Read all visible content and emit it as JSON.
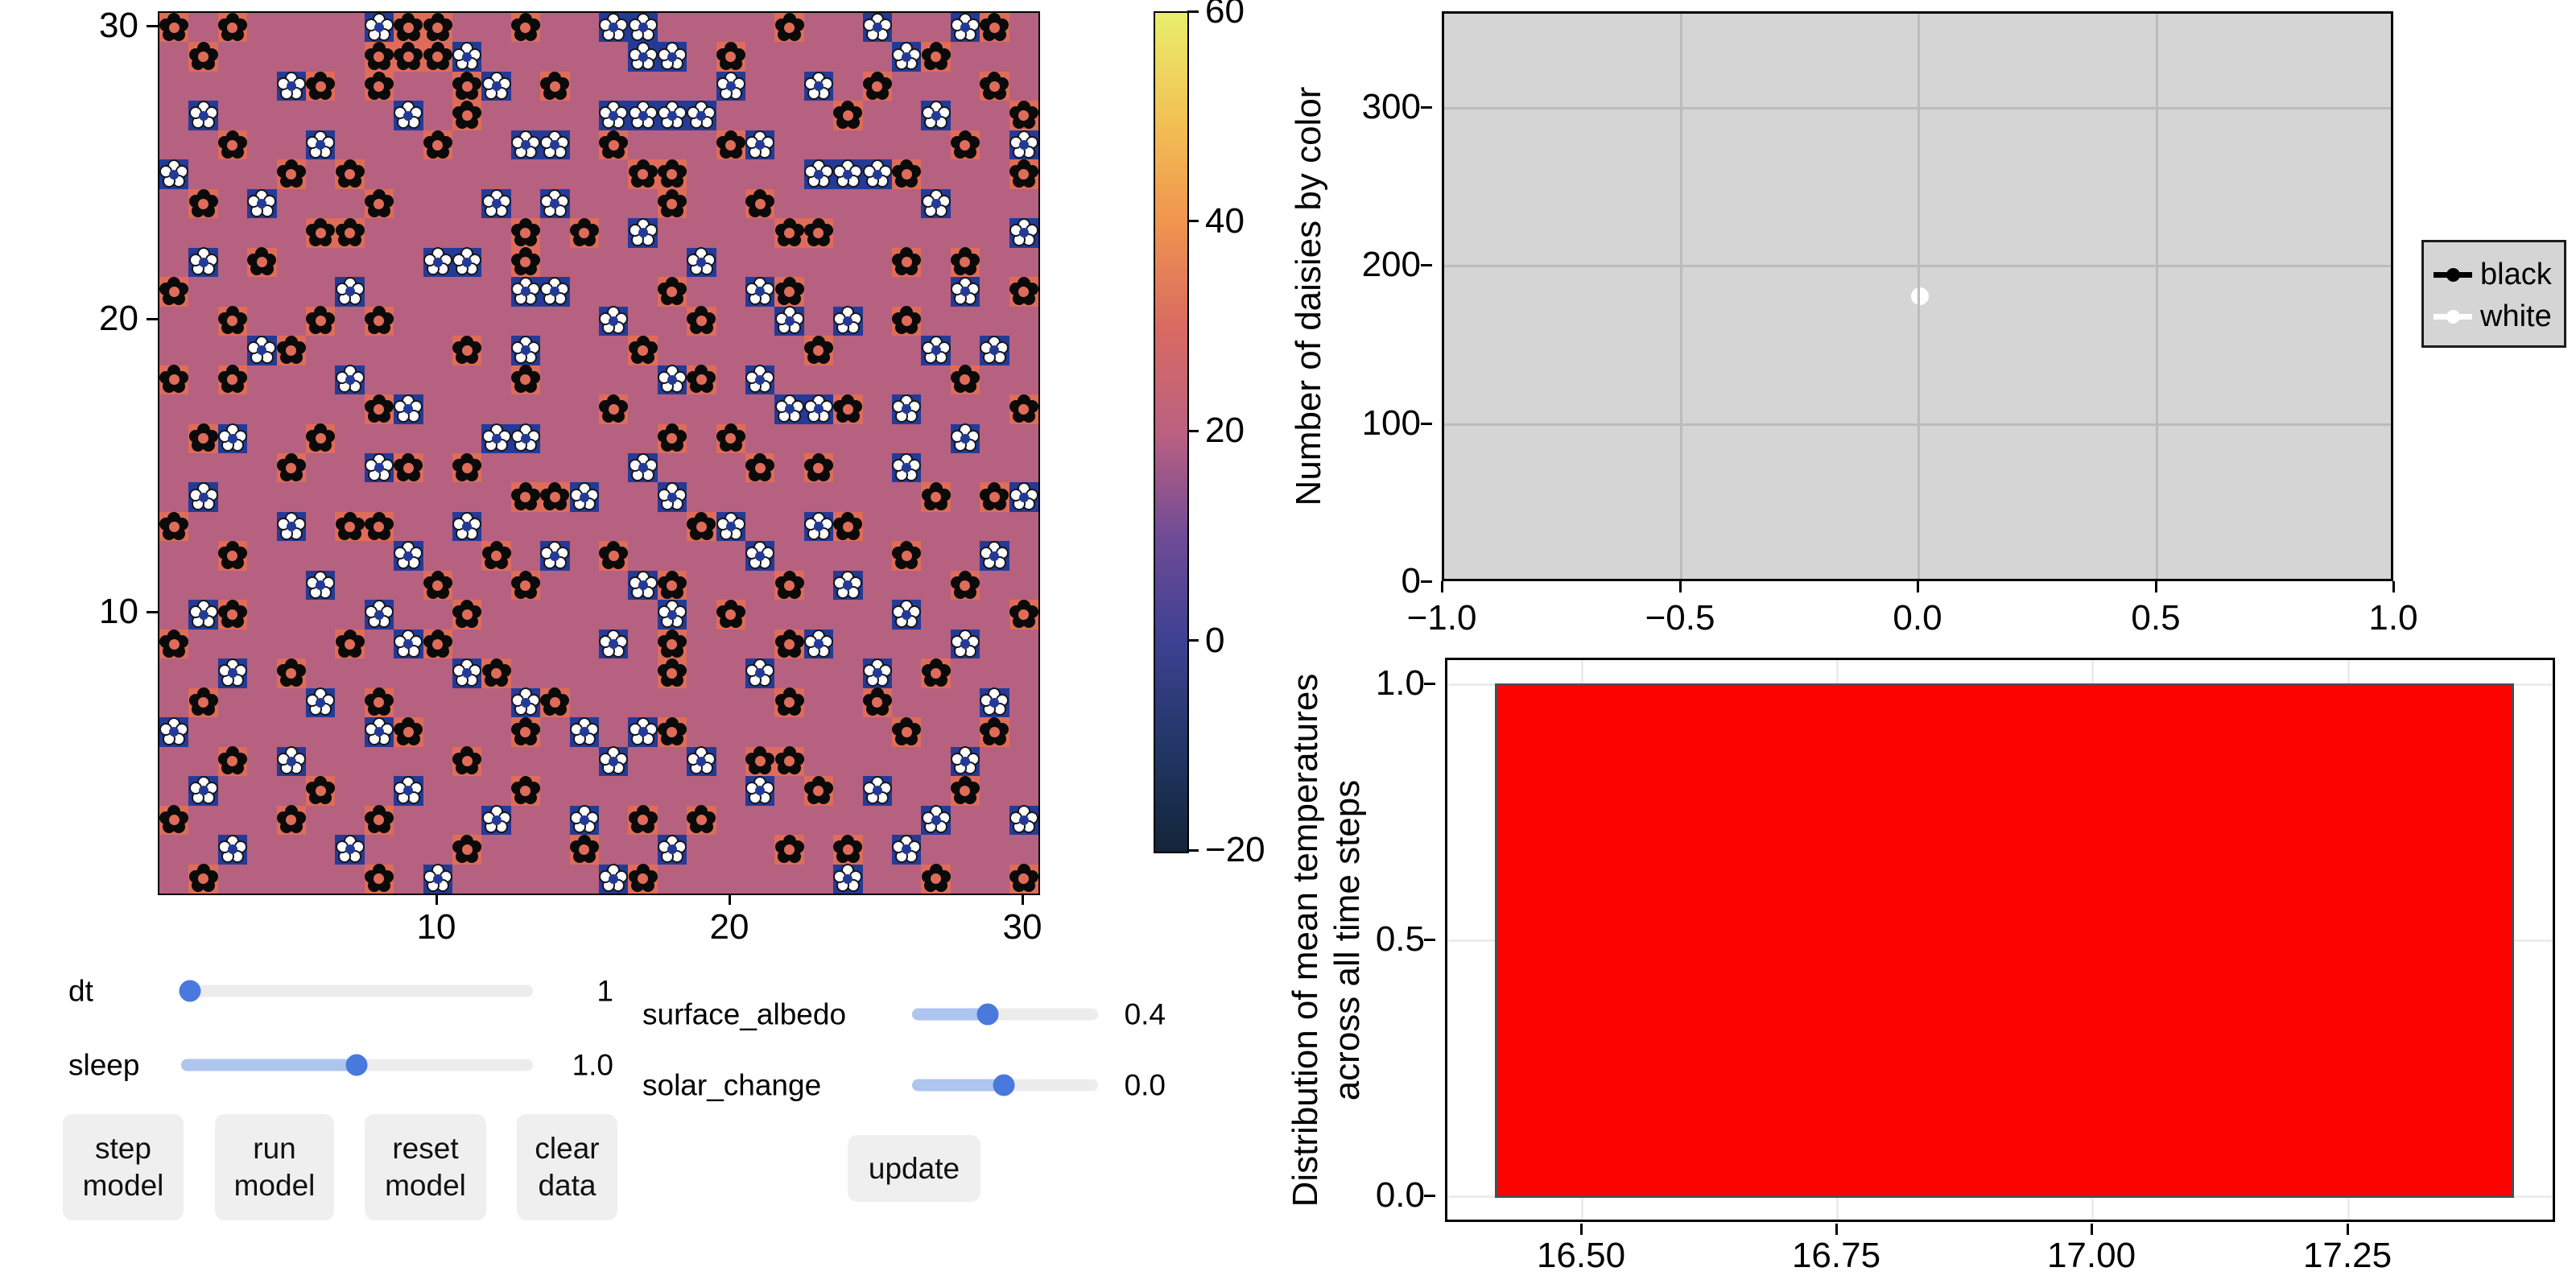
{
  "window": {
    "background": "#ffffff"
  },
  "heatmap": {
    "x_tick_labels": [
      "10",
      "20",
      "30"
    ],
    "y_tick_labels": [
      "30",
      "20",
      "10"
    ],
    "cell_colors": {
      "empty": "#b5617f",
      "black_daisy_cell": "#df6c59",
      "white_daisy_cell": "#243a97",
      "black_daisy": "#0a0a0a",
      "white_daisy": "#ffffff"
    },
    "grid_rows": [
      [
        "b.b..",
        "..wbb",
        "..b..",
        "ww...",
        ".b..w",
        "..wb."
      ],
      [
        ".b...",
        "..bbb",
        "w....",
        ".ww.b",
        ".....",
        "wb..."
      ],
      [
        "....w",
        "b.b..",
        "bw.b.",
        "....w",
        "..w.b",
        "...b."
      ],
      [
        ".w...",
        "...w.",
        "b....",
        "wwww.",
        "...b.",
        ".w..b"
      ],
      [
        "..b..",
        "w...b",
        "..ww.",
        "b...b",
        "w....",
        "..b.w"
      ],
      [
        "w...b",
        ".b...",
        ".....",
        ".bb..",
        "..www",
        "b...b"
      ],
      [
        ".b.w.",
        "..b..",
        ".w.w.",
        "..b..",
        "b....",
        ".w..."
      ],
      [
        ".....",
        "bb...",
        "..b.b",
        ".w...",
        ".bb..",
        "....w"
      ],
      [
        ".w.b.",
        "....w",
        "w.b..",
        "...w.",
        ".....",
        "b.b.."
      ],
      [
        "b....",
        ".w...",
        "..ww.",
        "..b..",
        "wb...",
        "..w.b"
      ],
      [
        "..b..",
        "b.b..",
        ".....",
        "w..b.",
        ".w.w.",
        "b...."
      ],
      [
        "...wb",
        ".....",
        "b.w..",
        ".b...",
        "..b..",
        ".w.w."
      ],
      [
        "b.b..",
        ".w...",
        "..b..",
        "..wb.",
        "w....",
        "..b.."
      ],
      [
        ".....",
        "..bw.",
        ".....",
        "b....",
        ".wwb.",
        "w...b"
      ],
      [
        ".bw..",
        "b....",
        ".ww..",
        "..b.b",
        ".....",
        "..w.."
      ],
      [
        "....b",
        "..wb.",
        "b....",
        ".w...",
        "b.b..",
        "w...."
      ],
      [
        ".w...",
        ".....",
        "..bbw",
        "..w..",
        ".....",
        ".b.bw"
      ],
      [
        "b...w",
        ".bb..",
        "w....",
        "...bw",
        "..wb.",
        "....."
      ],
      [
        "..b..",
        "...w.",
        ".b.w.",
        "b....",
        "w....",
        "b..w."
      ],
      [
        ".....",
        "w...b",
        "..b..",
        ".wb..",
        ".b.w.",
        "..b.."
      ],
      [
        ".wb..",
        "..w..",
        "b....",
        "..w.b",
        ".....",
        "w...b"
      ],
      [
        "b....",
        ".b.wb",
        ".....",
        "w.b..",
        ".bw..",
        "..w.."
      ],
      [
        "..w.b",
        ".....",
        "wb...",
        "..b..",
        "w...w",
        ".b..."
      ],
      [
        ".b...",
        "w.b..",
        "..wb.",
        ".....",
        ".b..b",
        "...w."
      ],
      [
        "w....",
        "..wb.",
        "..b.w",
        ".wb..",
        ".....",
        "b..b."
      ],
      [
        "..b.w",
        ".....",
        "b....",
        "w..w.",
        "bb...",
        "..w.."
      ],
      [
        ".w...",
        "b..w.",
        "..b..",
        ".....",
        "w.b.w",
        "..b.."
      ],
      [
        "b...b",
        "..b..",
        ".w..w",
        ".b.b.",
        ".....",
        ".w..w"
      ],
      [
        "..w..",
        ".w...",
        "b...b",
        "..w..",
        ".b.b.",
        "w...."
      ],
      [
        ".b...",
        "..b.w",
        ".....",
        "wb...",
        "...w.",
        ".b..b"
      ]
    ]
  },
  "colorbar": {
    "tick_labels": [
      "60",
      "40",
      "20",
      "0",
      "−20"
    ],
    "gradient_stops_bottom_to_top": [
      "#132539",
      "#223767",
      "#3d4191",
      "#6f4b96",
      "#bb6180",
      "#d86a62",
      "#f0944e",
      "#f2c254",
      "#e9ee6c"
    ]
  },
  "daisy_chart": {
    "ylabel": "Number of daisies by color",
    "y_tick_labels": [
      "300",
      "200",
      "100",
      "0"
    ],
    "x_tick_labels": [
      "−1.0",
      "−0.5",
      "0.0",
      "0.5",
      "1.0"
    ],
    "legend": [
      {
        "label": "black",
        "color": "#000000"
      },
      {
        "label": "white",
        "color": "#ffffff"
      }
    ]
  },
  "temp_hist": {
    "ylabel_line1": "Distribution of mean temperatures",
    "ylabel_line2": "across all time steps",
    "y_tick_labels": [
      "1.0",
      "0.5",
      "0.0"
    ],
    "x_tick_labels": [
      "16.50",
      "16.75",
      "17.00",
      "17.25"
    ],
    "bar_color": "#fb0300"
  },
  "controls": {
    "sliders": [
      {
        "label": "dt",
        "value": "1"
      },
      {
        "label": "sleep",
        "value": "1.0"
      },
      {
        "label": "surface_albedo",
        "value": "0.4"
      },
      {
        "label": "solar_change",
        "value": "0.0"
      }
    ],
    "buttons": [
      {
        "line1": "step",
        "line2": "model"
      },
      {
        "line1": "run",
        "line2": "model"
      },
      {
        "line1": "reset",
        "line2": "model"
      },
      {
        "line1": "clear",
        "line2": "data"
      }
    ],
    "update_button": "update",
    "accent_color": "#4a79de"
  },
  "chart_data": [
    {
      "type": "heatmap",
      "title": "Daisyworld surface (30×30): temperature colormap with black and white daisies",
      "x_range": [
        1,
        30
      ],
      "y_range": [
        1,
        30
      ],
      "x_ticks": [
        10,
        20,
        30
      ],
      "y_ticks": [
        10,
        20,
        30
      ],
      "colorbar": {
        "ticks": [
          60,
          40,
          20,
          0,
          -20
        ],
        "colormap": "thermal"
      },
      "cell_values": {
        "empty_background_temp": "≈17 (mauve)",
        "black_daisy_cell_temp": "≈27 (salmon)",
        "white_daisy_cell_temp": "≈-5 (blue)"
      },
      "cells_encoding": "see heatmap.grid_rows ('.'=empty, 'b'=black daisy, 'w'=white daisy)"
    },
    {
      "type": "scatter",
      "title": "Number of daisies by color",
      "xlim": [
        -1.0,
        1.0
      ],
      "ylim": [
        0,
        360
      ],
      "x_ticks": [
        -1.0,
        -0.5,
        0.0,
        0.5,
        1.0
      ],
      "y_ticks": [
        0,
        100,
        200,
        300
      ],
      "grid": true,
      "legend_position": "right-outside",
      "series": [
        {
          "name": "black",
          "color": "#000000",
          "points": [
            [
              0.0,
              182
            ]
          ],
          "note": "hidden beneath white marker"
        },
        {
          "name": "white",
          "color": "#ffffff",
          "points": [
            [
              0.0,
              182
            ]
          ]
        }
      ]
    },
    {
      "type": "histogram",
      "ylabel": "Distribution of mean temperatures across all time steps",
      "xlim": [
        16.37,
        17.45
      ],
      "ylim": [
        0,
        1.1
      ],
      "x_ticks": [
        16.5,
        16.75,
        17.0,
        17.25
      ],
      "y_ticks": [
        0.0,
        0.5,
        1.0
      ],
      "bins": [
        {
          "x_start": 16.42,
          "x_end": 17.41,
          "height": 1.0
        }
      ],
      "color": "red"
    }
  ]
}
